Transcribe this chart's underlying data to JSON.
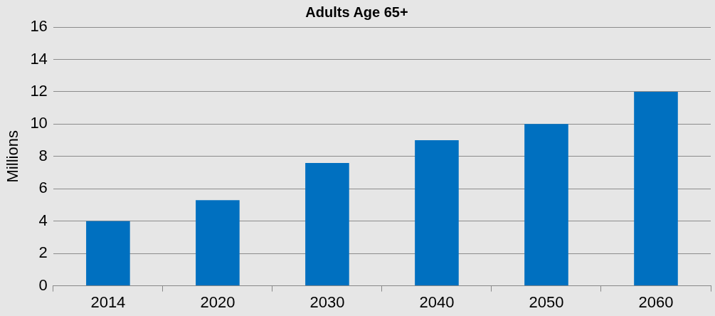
{
  "chart_data": {
    "type": "bar",
    "title": "Adults Age 65+",
    "ylabel": "Millions",
    "categories": [
      "2014",
      "2020",
      "2030",
      "2040",
      "2050",
      "2060"
    ],
    "values": [
      4,
      5.3,
      7.6,
      9,
      10,
      12
    ],
    "color": "#0070c0",
    "ylim": [
      0,
      16
    ],
    "yticks": [
      0,
      2,
      4,
      6,
      8,
      10,
      12,
      14,
      16
    ],
    "grid": "y",
    "legend": false
  }
}
